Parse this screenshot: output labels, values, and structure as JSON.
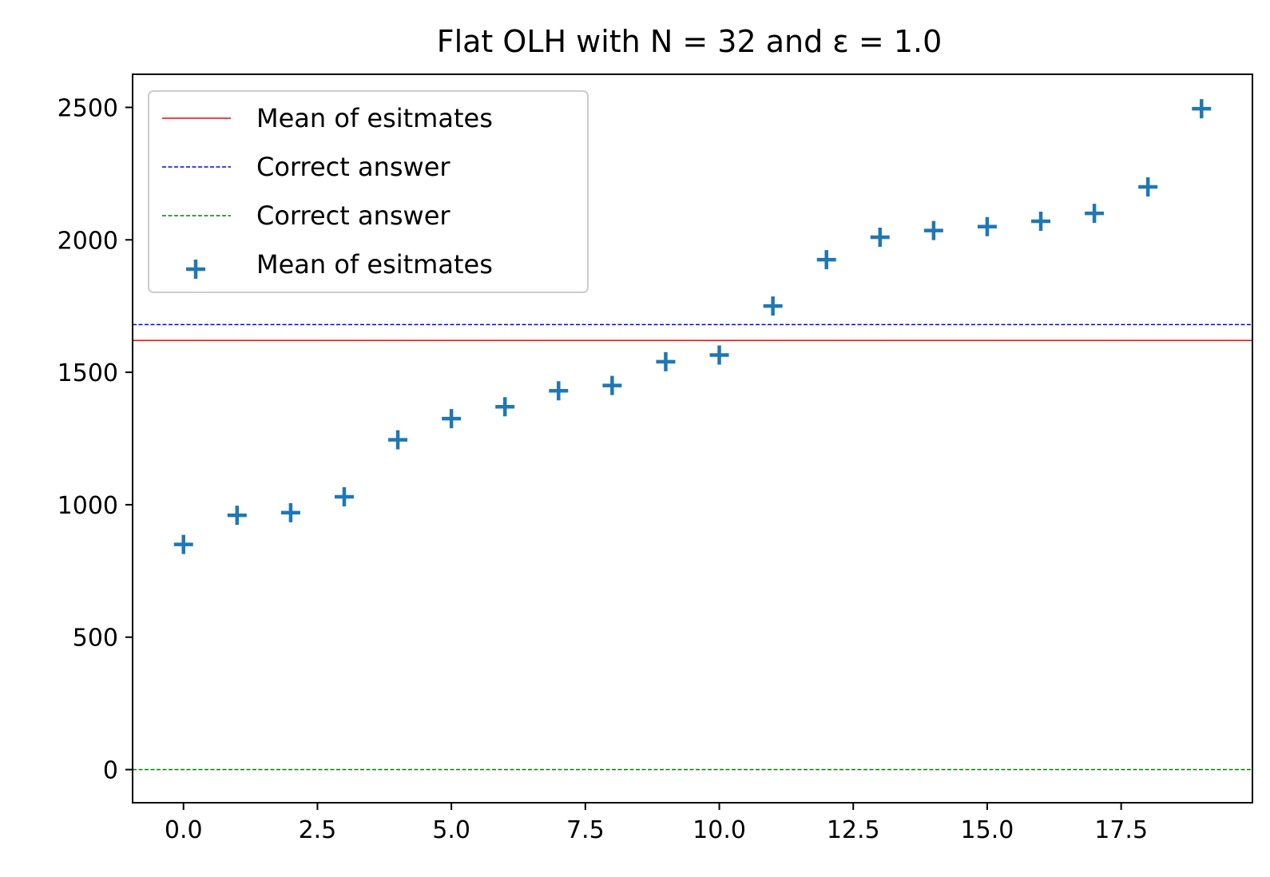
{
  "chart_data": {
    "type": "scatter",
    "title": "Flat OLH with N = 32 and ε = 1.0",
    "xlabel": "",
    "ylabel": "",
    "xlim": [
      -0.95,
      19.95
    ],
    "ylim": [
      -125,
      2625
    ],
    "xticks": [
      0.0,
      2.5,
      5.0,
      7.5,
      10.0,
      12.5,
      15.0,
      17.5
    ],
    "xtick_labels": [
      "0.0",
      "2.5",
      "5.0",
      "7.5",
      "10.0",
      "12.5",
      "15.0",
      "17.5"
    ],
    "yticks": [
      0,
      500,
      1000,
      1500,
      2000,
      2500
    ],
    "ytick_labels": [
      "0",
      "500",
      "1000",
      "1500",
      "2000",
      "2500"
    ],
    "grid": false,
    "legend_position": "top-left",
    "series": [
      {
        "kind": "hline",
        "name": "Mean of esitmates",
        "value": 1620,
        "color": "#ff0000",
        "style": "solid"
      },
      {
        "kind": "hline",
        "name": "Correct answer",
        "value": 1680,
        "color": "#0000ff",
        "style": "dashed"
      },
      {
        "kind": "hline",
        "name": "Correct answer",
        "value": 0,
        "color": "#008000",
        "style": "dashed"
      },
      {
        "kind": "scatter",
        "name": "Mean of esitmates",
        "marker": "+",
        "color": "#1f77b4",
        "x": [
          0,
          1,
          2,
          3,
          4,
          5,
          6,
          7,
          8,
          9,
          10,
          11,
          12,
          13,
          14,
          15,
          16,
          17,
          18,
          19
        ],
        "y": [
          850,
          960,
          970,
          1030,
          1245,
          1325,
          1370,
          1430,
          1450,
          1540,
          1565,
          1750,
          1925,
          2010,
          2035,
          2050,
          2070,
          2100,
          2200,
          2495
        ]
      }
    ]
  }
}
